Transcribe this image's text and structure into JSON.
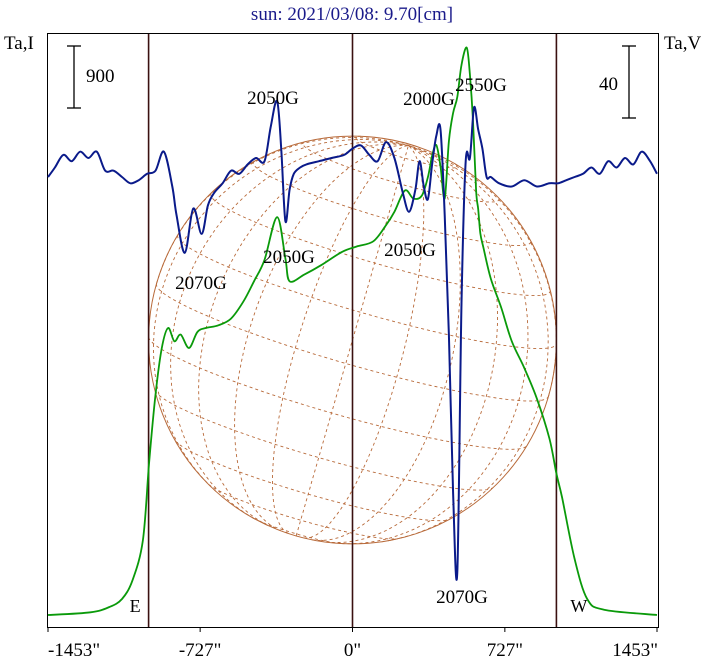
{
  "chart_data": {
    "type": "line",
    "title": "sun: 2021/03/08: 9.70[cm]",
    "left_axis_label": "Ta,I",
    "right_axis_label": "Ta,V",
    "xlim": [
      -1453,
      1453
    ],
    "x_unit": "arcsec",
    "x_ticks": [
      {
        "value": -1453,
        "label": "-1453\""
      },
      {
        "value": -727,
        "label": "-727\""
      },
      {
        "value": 0,
        "label": "0\""
      },
      {
        "value": 727,
        "label": "727\""
      },
      {
        "value": 1453,
        "label": "1453\""
      }
    ],
    "limb_markers": [
      {
        "x": -973,
        "label": "E"
      },
      {
        "x": 0,
        "label": ""
      },
      {
        "x": 973,
        "label": "W"
      }
    ],
    "scale_bars": [
      {
        "side": "left",
        "value": "900",
        "series": "Ta,I"
      },
      {
        "side": "right",
        "value": "40",
        "series": "Ta,V"
      }
    ],
    "series": [
      {
        "name": "Ta,I",
        "color": "#0a9a0a",
        "x": [
          -1453,
          -1250,
          -1160,
          -1100,
          -1050,
          -1000,
          -970,
          -940,
          -910,
          -880,
          -850,
          -820,
          -780,
          -740,
          -700,
          -640,
          -580,
          -520,
          -470,
          -420,
          -360,
          -320,
          -300,
          -230,
          -150,
          -50,
          20,
          100,
          160,
          200,
          250,
          290,
          330,
          360,
          380,
          400,
          420,
          440,
          460,
          480,
          500,
          520,
          545,
          560,
          575,
          590,
          600,
          610,
          625,
          660,
          710,
          760,
          820,
          880,
          940,
          973,
          1000,
          1060,
          1120,
          1200,
          1453
        ],
        "y": [
          0.0,
          20,
          60,
          120,
          260,
          560,
          1150,
          1650,
          2000,
          2150,
          2050,
          2100,
          2000,
          2120,
          2150,
          2170,
          2220,
          2350,
          2500,
          2660,
          2980,
          2670,
          2500,
          2550,
          2620,
          2720,
          2760,
          2800,
          2920,
          3020,
          3180,
          3120,
          3140,
          3280,
          3440,
          3520,
          3360,
          3120,
          3550,
          3760,
          3880,
          4120,
          4250,
          4050,
          3700,
          3180,
          3040,
          2860,
          2750,
          2520,
          2300,
          2050,
          1850,
          1620,
          1320,
          1060,
          880,
          420,
          120,
          40,
          0
        ]
      },
      {
        "name": "Ta,V",
        "color": "#0a1a8a",
        "x": [
          -1453,
          -1420,
          -1380,
          -1340,
          -1300,
          -1260,
          -1220,
          -1180,
          -1140,
          -1100,
          -1060,
          -1020,
          -980,
          -940,
          -900,
          -860,
          -840,
          -800,
          -760,
          -720,
          -690,
          -660,
          -620,
          -580,
          -540,
          -500,
          -460,
          -420,
          -390,
          -360,
          -340,
          -320,
          -300,
          -280,
          -250,
          -220,
          -160,
          -100,
          -40,
          0,
          40,
          80,
          120,
          160,
          200,
          240,
          270,
          300,
          320,
          340,
          360,
          380,
          400,
          420,
          440,
          460,
          480,
          500,
          520,
          540,
          560,
          580,
          600,
          620,
          640,
          660,
          700,
          760,
          820,
          880,
          940,
          980,
          1020,
          1060,
          1100,
          1140,
          1180,
          1220,
          1260,
          1300,
          1340,
          1380,
          1420,
          1453
        ],
        "y": [
          0,
          6,
          14,
          10,
          16,
          12,
          16,
          4,
          4,
          0,
          -4,
          -2,
          2,
          4,
          16,
          -6,
          -24,
          -48,
          -20,
          -36,
          -18,
          -10,
          -4,
          4,
          2,
          8,
          12,
          10,
          32,
          48,
          18,
          -28,
          -8,
          2,
          6,
          8,
          10,
          12,
          14,
          18,
          20,
          14,
          10,
          22,
          12,
          -10,
          -22,
          -8,
          10,
          -6,
          -14,
          8,
          26,
          30,
          -24,
          -100,
          -200,
          -250,
          -80,
          10,
          12,
          44,
          30,
          18,
          0,
          0,
          -4,
          -6,
          -2,
          -6,
          -4,
          -4,
          -2,
          0,
          2,
          6,
          2,
          10,
          6,
          12,
          8,
          16,
          10,
          2
        ]
      }
    ],
    "annotations": [
      {
        "text": "2050G"
      },
      {
        "text": "2000G"
      },
      {
        "text": "2550G"
      },
      {
        "text": "2050G"
      },
      {
        "text": "2050G"
      },
      {
        "text": "2070G"
      },
      {
        "text": "2070G"
      }
    ],
    "grid": false,
    "legend": "none"
  }
}
